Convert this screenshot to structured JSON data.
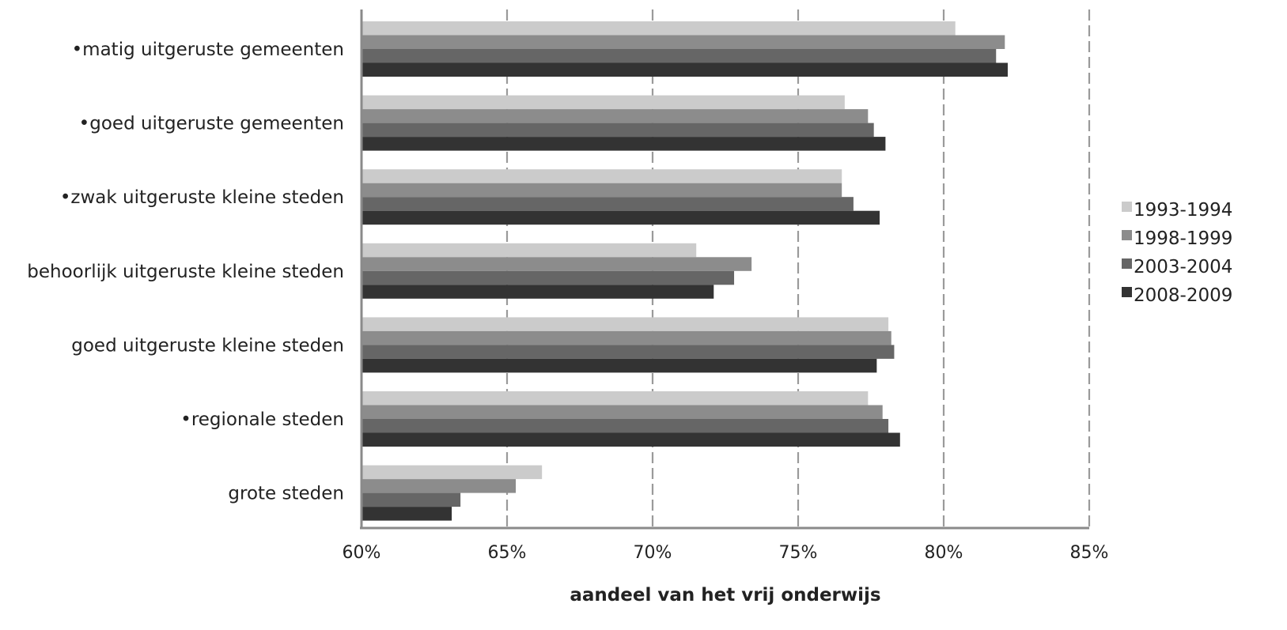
{
  "chart_data": {
    "type": "bar",
    "orientation": "horizontal",
    "title": "",
    "xlabel": "aandeel van het vrij onderwijs",
    "ylabel": "",
    "xlim": [
      60,
      85
    ],
    "x_ticks": [
      60,
      65,
      70,
      75,
      80,
      85
    ],
    "x_tick_labels": [
      "60%",
      "65%",
      "70%",
      "75%",
      "80%",
      "85%"
    ],
    "grid": "vertical dashed",
    "legend_position": "right",
    "categories": [
      "matig uitgeruste gemeenten",
      "goed uitgeruste gemeenten",
      "zwak uitgeruste kleine steden",
      "behoorlijk uitgeruste kleine steden",
      "goed uitgeruste kleine steden",
      "regionale steden",
      "grote steden"
    ],
    "category_bullets": [
      true,
      true,
      true,
      false,
      false,
      true,
      false
    ],
    "series": [
      {
        "name": "1993-1994",
        "color": "#cbcbcb",
        "values": [
          80.4,
          76.6,
          76.5,
          71.5,
          78.1,
          77.4,
          66.2
        ]
      },
      {
        "name": "1998-1999",
        "color": "#8c8c8c",
        "values": [
          82.1,
          77.4,
          76.5,
          73.4,
          78.2,
          77.9,
          65.3
        ]
      },
      {
        "name": "2003-2004",
        "color": "#666666",
        "values": [
          81.8,
          77.6,
          76.9,
          72.8,
          78.3,
          78.1,
          63.4
        ]
      },
      {
        "name": "2008-2009",
        "color": "#333333",
        "values": [
          82.2,
          78.0,
          77.8,
          72.1,
          77.7,
          78.5,
          63.1
        ]
      }
    ]
  }
}
